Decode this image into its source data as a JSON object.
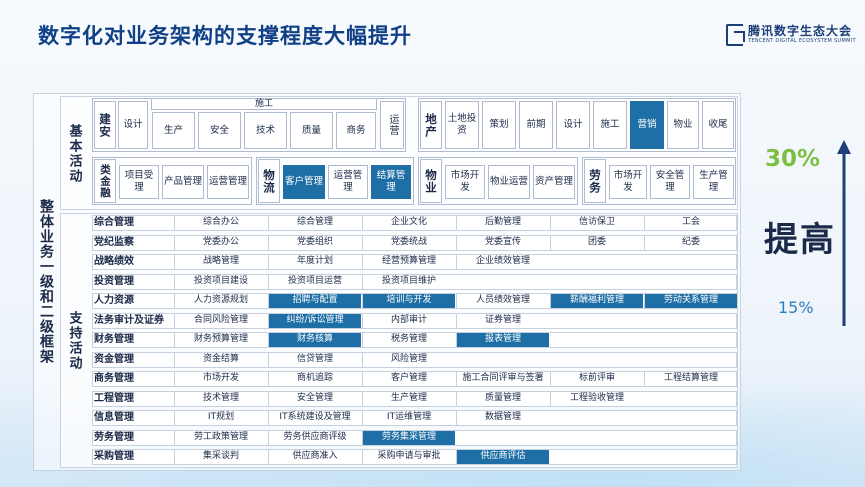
{
  "title": "数字化对业务架构的支撑程度大幅提升",
  "logo": {
    "name": "腾讯数字生态大会",
    "subtitle": "TENCENT DIGITAL ECOSYSTEM SUMMIT"
  },
  "labels": {
    "main": "整体业务一级和二级框架",
    "basic": "基本活动",
    "support": "支持活动"
  },
  "basic": {
    "jianan": {
      "name": "建安",
      "design": "设计",
      "construction": "施工",
      "construction_items": [
        "生产",
        "安全",
        "技术",
        "质量",
        "商务"
      ],
      "operation": "运营"
    },
    "realestate": {
      "name": "地产",
      "items": [
        {
          "label": "土地投资",
          "highlight": false
        },
        {
          "label": "策划",
          "highlight": false
        },
        {
          "label": "前期",
          "highlight": false
        },
        {
          "label": "设计",
          "highlight": false
        },
        {
          "label": "施工",
          "highlight": false
        },
        {
          "label": "营销",
          "highlight": true
        },
        {
          "label": "物业",
          "highlight": false
        },
        {
          "label": "收尾",
          "highlight": false
        }
      ]
    },
    "finance": {
      "name": "类金融",
      "items": [
        {
          "label": "项目受理",
          "highlight": false
        },
        {
          "label": "产品管理",
          "highlight": false
        },
        {
          "label": "运营管理",
          "highlight": false
        }
      ]
    },
    "logistics": {
      "name": "物流",
      "items": [
        {
          "label": "客户管理",
          "highlight": true
        },
        {
          "label": "运营管理",
          "highlight": false
        },
        {
          "label": "结算管理",
          "highlight": true
        }
      ]
    },
    "property": {
      "name": "物业",
      "items": [
        {
          "label": "市场开发",
          "highlight": false
        },
        {
          "label": "物业运营",
          "highlight": false
        },
        {
          "label": "资产管理",
          "highlight": false
        }
      ]
    },
    "labor": {
      "name": "劳务",
      "items": [
        {
          "label": "市场开发",
          "highlight": false
        },
        {
          "label": "安全管理",
          "highlight": false
        },
        {
          "label": "生产管理",
          "highlight": false
        }
      ]
    }
  },
  "support_rows": [
    {
      "category": "综合管理",
      "items": [
        {
          "label": "综合办公",
          "highlight": false
        },
        {
          "label": "综合管理",
          "highlight": false
        },
        {
          "label": "企业文化",
          "highlight": false
        },
        {
          "label": "后勤管理",
          "highlight": false
        },
        {
          "label": "信访保卫",
          "highlight": false
        },
        {
          "label": "工会",
          "highlight": false
        }
      ]
    },
    {
      "category": "党纪监察",
      "items": [
        {
          "label": "党委办公",
          "highlight": false
        },
        {
          "label": "党委组织",
          "highlight": false
        },
        {
          "label": "党委统战",
          "highlight": false
        },
        {
          "label": "党委宣传",
          "highlight": false
        },
        {
          "label": "团委",
          "highlight": false
        },
        {
          "label": "纪委",
          "highlight": false
        }
      ]
    },
    {
      "category": "战略绩效",
      "items": [
        {
          "label": "战略管理",
          "highlight": false
        },
        {
          "label": "年度计划",
          "highlight": false
        },
        {
          "label": "经营预算管理",
          "highlight": false
        },
        {
          "label": "企业绩效管理",
          "highlight": false
        }
      ]
    },
    {
      "category": "投资管理",
      "items": [
        {
          "label": "投资项目建设",
          "highlight": false
        },
        {
          "label": "投资项目运营",
          "highlight": false
        },
        {
          "label": "投资项目维护",
          "highlight": false
        }
      ]
    },
    {
      "category": "人力资源",
      "items": [
        {
          "label": "人力资源规划",
          "highlight": false
        },
        {
          "label": "招聘与配置",
          "highlight": true
        },
        {
          "label": "培训与开发",
          "highlight": true
        },
        {
          "label": "人员绩效管理",
          "highlight": false
        },
        {
          "label": "薪酬福利管理",
          "highlight": true
        },
        {
          "label": "劳动关系管理",
          "highlight": true
        }
      ]
    },
    {
      "category": "法务审计及证券",
      "items": [
        {
          "label": "合同风险管理",
          "highlight": false
        },
        {
          "label": "纠纷/诉讼管理",
          "highlight": true
        },
        {
          "label": "内部审计",
          "highlight": false
        },
        {
          "label": "证券管理",
          "highlight": false
        }
      ]
    },
    {
      "category": "财务管理",
      "items": [
        {
          "label": "财务预算管理",
          "highlight": false
        },
        {
          "label": "财务核算",
          "highlight": true
        },
        {
          "label": "税务管理",
          "highlight": false
        },
        {
          "label": "报表管理",
          "highlight": true
        }
      ]
    },
    {
      "category": "资金管理",
      "items": [
        {
          "label": "资金结算",
          "highlight": false
        },
        {
          "label": "信贷管理",
          "highlight": false
        },
        {
          "label": "风险管理",
          "highlight": false
        }
      ]
    },
    {
      "category": "商务管理",
      "items": [
        {
          "label": "市场开发",
          "highlight": false
        },
        {
          "label": "商机追踪",
          "highlight": false
        },
        {
          "label": "客户管理",
          "highlight": false
        },
        {
          "label": "施工合同评审与签署",
          "highlight": false
        },
        {
          "label": "标前评审",
          "highlight": false
        },
        {
          "label": "工程结算管理",
          "highlight": false
        }
      ]
    },
    {
      "category": "工程管理",
      "items": [
        {
          "label": "技术管理",
          "highlight": false
        },
        {
          "label": "安全管理",
          "highlight": false
        },
        {
          "label": "生产管理",
          "highlight": false
        },
        {
          "label": "质量管理",
          "highlight": false
        },
        {
          "label": "工程验收管理",
          "highlight": false
        }
      ]
    },
    {
      "category": "信息管理",
      "items": [
        {
          "label": "IT规划",
          "highlight": false
        },
        {
          "label": "IT系统建设及管理",
          "highlight": false
        },
        {
          "label": "IT运维管理",
          "highlight": false
        },
        {
          "label": "数据管理",
          "highlight": false
        }
      ]
    },
    {
      "category": "劳务管理",
      "items": [
        {
          "label": "劳工政策管理",
          "highlight": false
        },
        {
          "label": "劳务供应商评级",
          "highlight": false
        },
        {
          "label": "劳务集采管理",
          "highlight": true
        }
      ]
    },
    {
      "category": "采购管理",
      "items": [
        {
          "label": "集采谈判",
          "highlight": false
        },
        {
          "label": "供应商准入",
          "highlight": false
        },
        {
          "label": "采购申请与审批",
          "highlight": false
        },
        {
          "label": "供应商评估",
          "highlight": true
        }
      ]
    }
  ],
  "metrics": {
    "high": "30%",
    "improve": "提高",
    "low": "15%"
  },
  "colors": {
    "highlight": "#1e6fa6",
    "title": "#0f3f86",
    "green": "#7cc043",
    "arrow": "#1c3f7a"
  }
}
